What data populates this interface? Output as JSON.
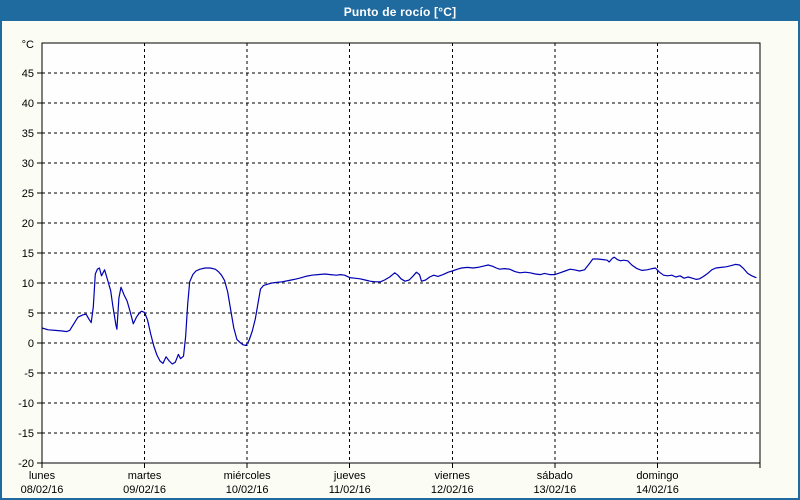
{
  "window": {
    "title": "Punto de rocío [°C]"
  },
  "colors": {
    "header_bg": "#1f6a9e",
    "border": "#1f6a9e",
    "line": "#0000b3",
    "grid": "#000000",
    "text": "#000000",
    "plot_bg": "#fefefe",
    "page_bg": "#fbfdf5"
  },
  "chart_data": {
    "type": "line",
    "title": "Punto de rocío [°C]",
    "y_unit_label": "°C",
    "ylim": [
      -20,
      50
    ],
    "y_ticks": [
      45,
      40,
      35,
      30,
      25,
      20,
      15,
      10,
      5,
      0,
      -5,
      -10,
      -15,
      -20
    ],
    "grid": "dashed",
    "legend": "none",
    "x_range_days": [
      0,
      7
    ],
    "x_days": [
      {
        "name": "lunes",
        "date": "08/02/16"
      },
      {
        "name": "martes",
        "date": "09/02/16"
      },
      {
        "name": "miércoles",
        "date": "10/02/16"
      },
      {
        "name": "jueves",
        "date": "11/02/16"
      },
      {
        "name": "viernes",
        "date": "12/02/16"
      },
      {
        "name": "sábado",
        "date": "13/02/16"
      },
      {
        "name": "domingo",
        "date": "14/02/16"
      }
    ],
    "series": [
      {
        "name": "Punto de rocío",
        "color": "#0000b3",
        "points": [
          [
            0.0,
            2.5
          ],
          [
            0.06,
            2.2
          ],
          [
            0.13,
            2.1
          ],
          [
            0.2,
            2.0
          ],
          [
            0.24,
            1.9
          ],
          [
            0.27,
            2.1
          ],
          [
            0.31,
            3.2
          ],
          [
            0.35,
            4.3
          ],
          [
            0.4,
            4.7
          ],
          [
            0.43,
            4.8
          ],
          [
            0.46,
            3.9
          ],
          [
            0.48,
            3.4
          ],
          [
            0.5,
            6.0
          ],
          [
            0.52,
            11.5
          ],
          [
            0.54,
            12.3
          ],
          [
            0.56,
            12.5
          ],
          [
            0.58,
            11.2
          ],
          [
            0.61,
            12.2
          ],
          [
            0.64,
            10.5
          ],
          [
            0.67,
            8.7
          ],
          [
            0.69,
            6.2
          ],
          [
            0.72,
            3.0
          ],
          [
            0.73,
            2.3
          ],
          [
            0.75,
            7.5
          ],
          [
            0.77,
            9.3
          ],
          [
            0.8,
            8.0
          ],
          [
            0.83,
            7.0
          ],
          [
            0.86,
            5.2
          ],
          [
            0.89,
            3.2
          ],
          [
            0.92,
            4.3
          ],
          [
            0.95,
            5.0
          ],
          [
            0.97,
            5.3
          ],
          [
            1.0,
            5.1
          ],
          [
            1.03,
            3.8
          ],
          [
            1.06,
            1.5
          ],
          [
            1.09,
            -0.5
          ],
          [
            1.12,
            -2.0
          ],
          [
            1.15,
            -3.0
          ],
          [
            1.18,
            -3.4
          ],
          [
            1.21,
            -2.3
          ],
          [
            1.24,
            -3.0
          ],
          [
            1.27,
            -3.5
          ],
          [
            1.3,
            -3.2
          ],
          [
            1.33,
            -1.9
          ],
          [
            1.35,
            -2.6
          ],
          [
            1.38,
            -2.2
          ],
          [
            1.4,
            1.0
          ],
          [
            1.42,
            6.5
          ],
          [
            1.44,
            10.2
          ],
          [
            1.47,
            11.4
          ],
          [
            1.5,
            12.0
          ],
          [
            1.54,
            12.3
          ],
          [
            1.59,
            12.5
          ],
          [
            1.64,
            12.5
          ],
          [
            1.69,
            12.3
          ],
          [
            1.72,
            11.9
          ],
          [
            1.75,
            11.3
          ],
          [
            1.78,
            10.4
          ],
          [
            1.81,
            8.5
          ],
          [
            1.84,
            5.5
          ],
          [
            1.87,
            2.5
          ],
          [
            1.9,
            0.6
          ],
          [
            1.93,
            0.1
          ],
          [
            1.96,
            -0.3
          ],
          [
            1.99,
            -0.4
          ],
          [
            2.02,
            0.5
          ],
          [
            2.05,
            2.0
          ],
          [
            2.08,
            4.0
          ],
          [
            2.11,
            7.0
          ],
          [
            2.13,
            9.0
          ],
          [
            2.16,
            9.6
          ],
          [
            2.2,
            9.8
          ],
          [
            2.24,
            10.0
          ],
          [
            2.29,
            10.1
          ],
          [
            2.34,
            10.2
          ],
          [
            2.4,
            10.4
          ],
          [
            2.46,
            10.6
          ],
          [
            2.51,
            10.8
          ],
          [
            2.57,
            11.1
          ],
          [
            2.63,
            11.3
          ],
          [
            2.69,
            11.4
          ],
          [
            2.76,
            11.5
          ],
          [
            2.81,
            11.4
          ],
          [
            2.87,
            11.3
          ],
          [
            2.91,
            11.4
          ],
          [
            2.95,
            11.3
          ],
          [
            3.0,
            10.9
          ],
          [
            3.05,
            10.8
          ],
          [
            3.1,
            10.7
          ],
          [
            3.15,
            10.5
          ],
          [
            3.2,
            10.3
          ],
          [
            3.25,
            10.2
          ],
          [
            3.3,
            10.2
          ],
          [
            3.34,
            10.5
          ],
          [
            3.39,
            11.0
          ],
          [
            3.44,
            11.7
          ],
          [
            3.47,
            11.3
          ],
          [
            3.5,
            10.7
          ],
          [
            3.54,
            10.3
          ],
          [
            3.58,
            10.5
          ],
          [
            3.62,
            11.2
          ],
          [
            3.65,
            11.8
          ],
          [
            3.68,
            11.4
          ],
          [
            3.7,
            10.3
          ],
          [
            3.74,
            10.5
          ],
          [
            3.78,
            11.0
          ],
          [
            3.82,
            11.3
          ],
          [
            3.86,
            11.1
          ],
          [
            3.91,
            11.4
          ],
          [
            3.96,
            11.8
          ],
          [
            4.0,
            12.0
          ],
          [
            4.05,
            12.3
          ],
          [
            4.09,
            12.5
          ],
          [
            4.15,
            12.6
          ],
          [
            4.2,
            12.5
          ],
          [
            4.25,
            12.6
          ],
          [
            4.3,
            12.8
          ],
          [
            4.35,
            13.0
          ],
          [
            4.39,
            12.8
          ],
          [
            4.43,
            12.5
          ],
          [
            4.46,
            12.3
          ],
          [
            4.51,
            12.4
          ],
          [
            4.56,
            12.3
          ],
          [
            4.61,
            11.9
          ],
          [
            4.66,
            11.7
          ],
          [
            4.71,
            11.8
          ],
          [
            4.76,
            11.7
          ],
          [
            4.81,
            11.5
          ],
          [
            4.86,
            11.4
          ],
          [
            4.9,
            11.6
          ],
          [
            4.95,
            11.4
          ],
          [
            5.0,
            11.4
          ],
          [
            5.05,
            11.7
          ],
          [
            5.1,
            12.0
          ],
          [
            5.15,
            12.3
          ],
          [
            5.19,
            12.2
          ],
          [
            5.24,
            12.0
          ],
          [
            5.29,
            12.2
          ],
          [
            5.34,
            13.3
          ],
          [
            5.37,
            14.0
          ],
          [
            5.42,
            14.0
          ],
          [
            5.47,
            13.9
          ],
          [
            5.51,
            13.8
          ],
          [
            5.53,
            13.5
          ],
          [
            5.56,
            14.1
          ],
          [
            5.58,
            14.3
          ],
          [
            5.61,
            13.9
          ],
          [
            5.64,
            13.7
          ],
          [
            5.67,
            13.8
          ],
          [
            5.71,
            13.7
          ],
          [
            5.75,
            13.0
          ],
          [
            5.8,
            12.4
          ],
          [
            5.85,
            12.1
          ],
          [
            5.9,
            12.2
          ],
          [
            5.95,
            12.4
          ],
          [
            5.98,
            12.5
          ],
          [
            6.02,
            11.8
          ],
          [
            6.06,
            11.3
          ],
          [
            6.1,
            11.2
          ],
          [
            6.14,
            11.3
          ],
          [
            6.18,
            11.0
          ],
          [
            6.22,
            11.2
          ],
          [
            6.26,
            10.8
          ],
          [
            6.3,
            11.0
          ],
          [
            6.34,
            10.8
          ],
          [
            6.38,
            10.6
          ],
          [
            6.41,
            10.7
          ],
          [
            6.45,
            11.1
          ],
          [
            6.49,
            11.6
          ],
          [
            6.53,
            12.2
          ],
          [
            6.57,
            12.5
          ],
          [
            6.62,
            12.6
          ],
          [
            6.67,
            12.7
          ],
          [
            6.72,
            12.9
          ],
          [
            6.76,
            13.1
          ],
          [
            6.8,
            13.0
          ],
          [
            6.84,
            12.4
          ],
          [
            6.88,
            11.6
          ],
          [
            6.92,
            11.2
          ],
          [
            6.96,
            10.9
          ]
        ]
      }
    ]
  }
}
